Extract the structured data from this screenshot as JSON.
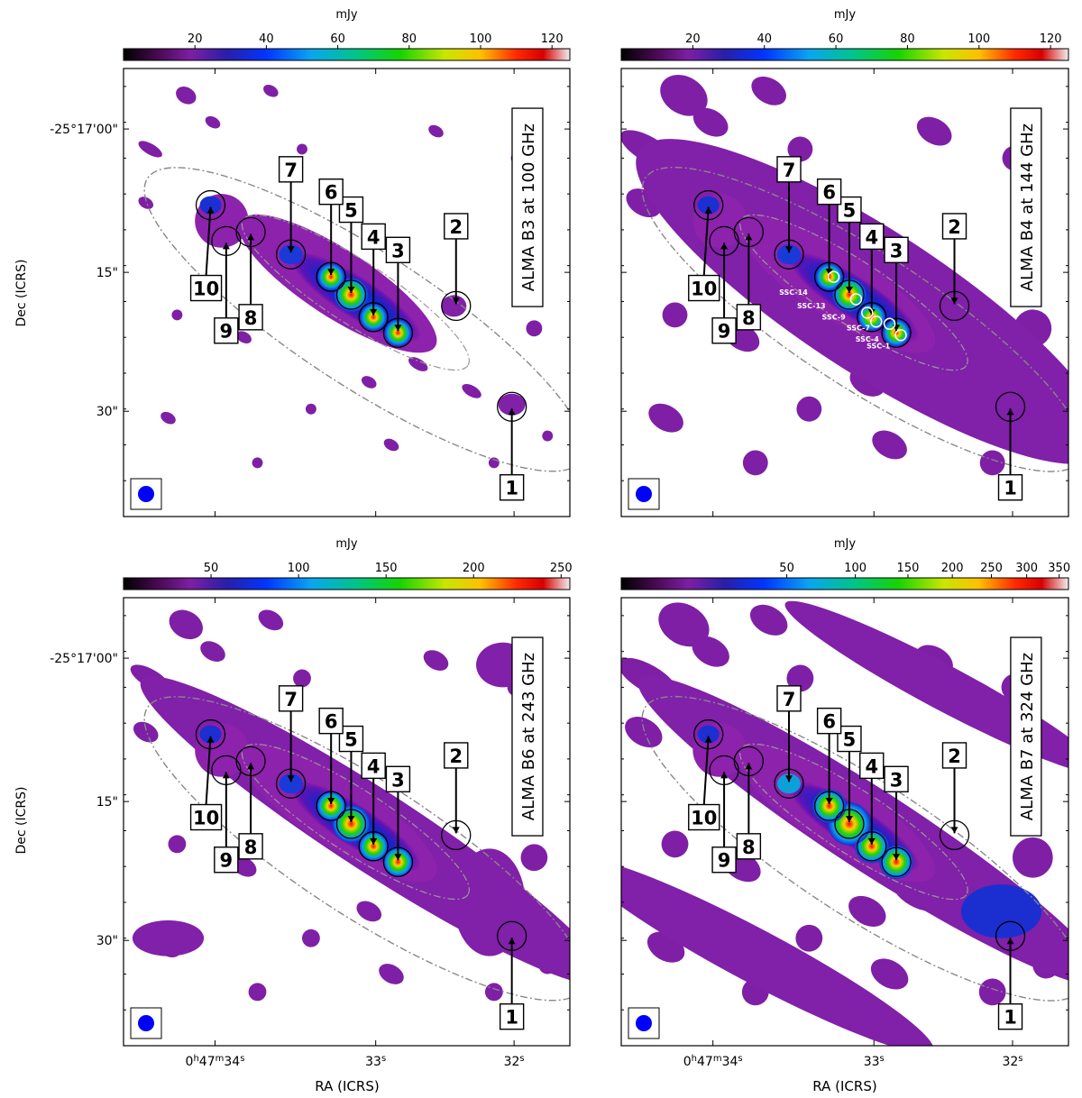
{
  "figure": {
    "colorbar_unit": "mJy",
    "axis_label_x": "RA (ICRS)",
    "axis_label_y": "Dec (ICRS)",
    "dec_ticks": [
      "-25°17'00\"",
      "15\"",
      "30\""
    ],
    "ra_ticks": [
      {
        "main": "0",
        "sup1": "h",
        "mid": "47",
        "sup2": "m",
        "end": "34",
        "sup3": "s"
      },
      {
        "main": "33",
        "sup3": "s"
      },
      {
        "main": "32",
        "sup3": "s"
      }
    ]
  },
  "chart_data": [
    {
      "type": "heatmap",
      "title": "ALMA B3 at 100 GHz",
      "colorbar_label": "mJy",
      "colorbar_ticks": [
        20,
        40,
        60,
        80,
        100,
        120
      ],
      "colorbar_range": [
        0,
        125
      ],
      "xlabel": "",
      "ylabel": "Dec (ICRS)",
      "regions": [
        "1",
        "2",
        "3",
        "4",
        "5",
        "6",
        "7",
        "8",
        "9",
        "10"
      ],
      "ssc_labels": []
    },
    {
      "type": "heatmap",
      "title": "ALMA B4 at 144 GHz",
      "colorbar_label": "mJy",
      "colorbar_ticks": [
        20,
        40,
        60,
        80,
        100,
        120
      ],
      "colorbar_range": [
        0,
        125
      ],
      "xlabel": "",
      "ylabel": "",
      "regions": [
        "1",
        "2",
        "3",
        "4",
        "5",
        "6",
        "7",
        "8",
        "9",
        "10"
      ],
      "ssc_labels": [
        "SSC-14",
        "SSC-13",
        "SSC-9",
        "SSC-7",
        "SSC-4",
        "SSC-1"
      ]
    },
    {
      "type": "heatmap",
      "title": "ALMA B6 at 243 GHz",
      "colorbar_label": "mJy",
      "colorbar_ticks": [
        50,
        100,
        150,
        200,
        250
      ],
      "colorbar_range": [
        0,
        255
      ],
      "xlabel": "RA (ICRS)",
      "ylabel": "Dec (ICRS)",
      "regions": [
        "1",
        "2",
        "3",
        "4",
        "5",
        "6",
        "7",
        "8",
        "9",
        "10"
      ],
      "ssc_labels": []
    },
    {
      "type": "heatmap",
      "title": "ALMA B7 at 324 GHz",
      "colorbar_label": "mJy",
      "colorbar_ticks": [
        50,
        100,
        150,
        200,
        250,
        300,
        350
      ],
      "colorbar_range": [
        0,
        365
      ],
      "colorbar_scale": "sqrt",
      "xlabel": "RA (ICRS)",
      "ylabel": "",
      "regions": [
        "1",
        "2",
        "3",
        "4",
        "5",
        "6",
        "7",
        "8",
        "9",
        "10"
      ],
      "ssc_labels": []
    }
  ]
}
